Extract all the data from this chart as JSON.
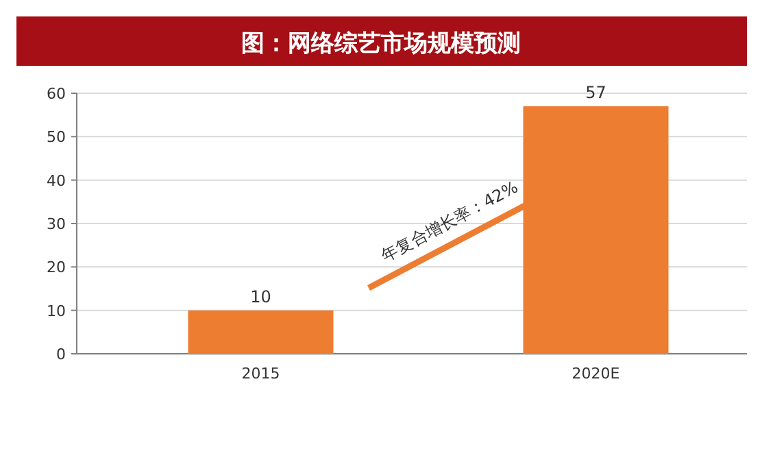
{
  "chart_data": {
    "type": "bar",
    "title": "图：网络综艺市场规模预测",
    "categories": [
      "2015",
      "2020E"
    ],
    "values": [
      10,
      57
    ],
    "color": "#ed7d31",
    "ylim": [
      0,
      60
    ],
    "yticks": [
      0,
      10,
      20,
      30,
      40,
      50,
      60
    ],
    "grid": "y",
    "data_labels": true,
    "annotations": [
      "年复合增长率：42%"
    ]
  }
}
